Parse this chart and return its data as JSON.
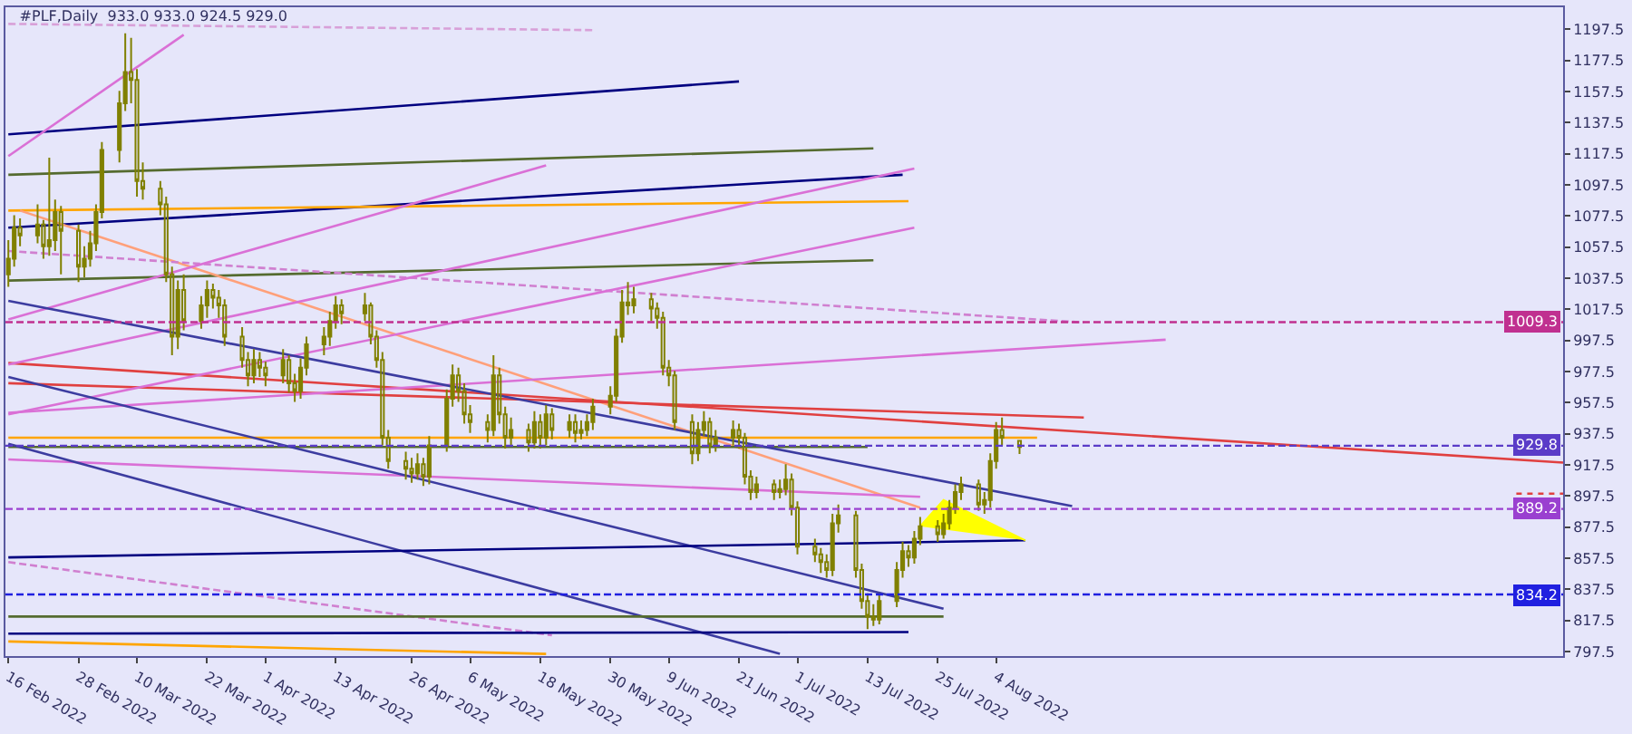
{
  "chart_data": {
    "type": "candlestick",
    "title": "#PLF,Daily  933.0 933.0 924.5 929.0",
    "xlim": [
      "2022-02-15T12:00",
      "2022-11-09"
    ],
    "xticks": [
      {
        "value": "2022-02-16",
        "label": "16 Feb 2022"
      },
      {
        "value": "2022-02-28",
        "label": "28 Feb 2022"
      },
      {
        "value": "2022-03-10",
        "label": "10 Mar 2022"
      },
      {
        "value": "2022-03-22",
        "label": "22 Mar 2022"
      },
      {
        "value": "2022-04-01",
        "label": "1 Apr 2022"
      },
      {
        "value": "2022-04-13",
        "label": "13 Apr 2022"
      },
      {
        "value": "2022-04-26",
        "label": "26 Apr 2022"
      },
      {
        "value": "2022-05-06",
        "label": "6 May 2022"
      },
      {
        "value": "2022-05-18",
        "label": "18 May 2022"
      },
      {
        "value": "2022-05-30",
        "label": "30 May 2022"
      },
      {
        "value": "2022-06-09",
        "label": "9 Jun 2022"
      },
      {
        "value": "2022-06-21",
        "label": "21 Jun 2022"
      },
      {
        "value": "2022-07-01",
        "label": "1 Jul 2022"
      },
      {
        "value": "2022-07-13",
        "label": "13 Jul 2022"
      },
      {
        "value": "2022-07-25",
        "label": "25 Jul 2022"
      },
      {
        "value": "2022-08-04",
        "label": "4 Aug 2022"
      }
    ],
    "ylim": [
      794.6,
      1211.7
    ],
    "yticks": [
      797.5,
      817.5,
      837.5,
      857.5,
      877.5,
      897.5,
      917.5,
      937.5,
      957.5,
      977.5,
      997.5,
      1017.5,
      1037.5,
      1057.5,
      1077.5,
      1097.5,
      1117.5,
      1137.5,
      1157.5,
      1177.5,
      1197.5
    ],
    "ref_lines": [
      {
        "axis": "y",
        "value": 1009.3,
        "label": "1009.3",
        "color": "#c03090",
        "line_style": "dashed"
      },
      {
        "axis": "y",
        "value": 929.8,
        "label": "929.8",
        "color": "#5a3cc8",
        "line_style": "dashed"
      },
      {
        "axis": "y",
        "value": 889.2,
        "label": "889.2",
        "color": "#9a40d0",
        "line_style": "dashed"
      },
      {
        "axis": "y",
        "value": 834.2,
        "label": "834.2",
        "color": "#2020e0",
        "line_style": "dashed"
      }
    ],
    "series": [
      {
        "type": "line",
        "x": [
          "2022-02-16",
          "2022-06-21"
        ],
        "values": [
          1130,
          1164
        ],
        "color": "#000080"
      },
      {
        "type": "line",
        "x": [
          "2022-02-16",
          "2022-07-14"
        ],
        "values": [
          1104,
          1121
        ],
        "color": "#556b2f"
      },
      {
        "type": "line",
        "x": [
          "2022-02-16",
          "2022-07-19"
        ],
        "values": [
          1070,
          1104
        ],
        "color": "#000080"
      },
      {
        "type": "line",
        "x": [
          "2022-02-16",
          "2022-07-20"
        ],
        "values": [
          1081,
          1087
        ],
        "color": "#ffa500"
      },
      {
        "type": "line",
        "x": [
          "2022-02-16",
          "2022-07-14"
        ],
        "values": [
          1036,
          1049
        ],
        "color": "#556b2f"
      },
      {
        "type": "line",
        "x": [
          "2022-02-18",
          "2022-07-22"
        ],
        "values": [
          1081,
          890
        ],
        "color": "#ffa07a"
      },
      {
        "type": "line",
        "x": [
          "2022-02-16",
          "2022-08-19"
        ],
        "values": [
          1055,
          1009
        ],
        "color": "#d080d0",
        "line_style": "dashed"
      },
      {
        "type": "line",
        "x": [
          "2022-02-16",
          "2022-11-09"
        ],
        "values": [
          983,
          919
        ],
        "color": "#e04040"
      },
      {
        "type": "line",
        "x": [
          "2022-02-16",
          "2022-08-19"
        ],
        "values": [
          970,
          948
        ],
        "color": "#e04040"
      },
      {
        "type": "line",
        "x": [
          "2022-02-16",
          "2022-08-11"
        ],
        "values": [
          935,
          935
        ],
        "color": "#ffa500"
      },
      {
        "type": "line",
        "x": [
          "2022-02-16",
          "2022-07-13"
        ],
        "values": [
          929,
          929
        ],
        "color": "#556b2f"
      },
      {
        "type": "line",
        "x": [
          "2022-02-16",
          "2022-03-18"
        ],
        "values": [
          1116,
          1194
        ],
        "color": "#da70d6"
      },
      {
        "type": "line",
        "x": [
          "2022-02-16",
          "2022-05-19"
        ],
        "values": [
          1011,
          1110
        ],
        "color": "#da70d6"
      },
      {
        "type": "line",
        "x": [
          "2022-02-16",
          "2022-07-21"
        ],
        "values": [
          982,
          1108
        ],
        "color": "#da70d6"
      },
      {
        "type": "line",
        "x": [
          "2022-02-16",
          "2022-07-21"
        ],
        "values": [
          950,
          1070
        ],
        "color": "#da70d6"
      },
      {
        "type": "line",
        "x": [
          "2022-02-16",
          "2022-09-02"
        ],
        "values": [
          951,
          998
        ],
        "color": "#da70d6"
      },
      {
        "type": "line",
        "x": [
          "2022-02-16",
          "2022-07-22"
        ],
        "values": [
          921,
          897
        ],
        "color": "#da70d6"
      },
      {
        "type": "line",
        "x": [
          "2022-02-16",
          "2022-08-17"
        ],
        "values": [
          1023,
          891
        ],
        "color": "#3c3ca0"
      },
      {
        "type": "line",
        "x": [
          "2022-02-16",
          "2022-06-28"
        ],
        "values": [
          931,
          796
        ],
        "color": "#3c3ca0"
      },
      {
        "type": "line",
        "x": [
          "2022-02-16",
          "2022-07-26"
        ],
        "values": [
          974,
          825
        ],
        "color": "#3c3ca0"
      },
      {
        "type": "line",
        "x": [
          "2022-02-16",
          "2022-05-20"
        ],
        "values": [
          855,
          808
        ],
        "color": "#d080d0",
        "line_style": "dashed"
      },
      {
        "type": "line",
        "x": [
          "2022-02-16",
          "2022-08-09"
        ],
        "values": [
          858,
          869
        ],
        "color": "#000080"
      },
      {
        "type": "line",
        "x": [
          "2022-02-16",
          "2022-07-26"
        ],
        "values": [
          820,
          820
        ],
        "color": "#556b2f"
      },
      {
        "type": "line",
        "x": [
          "2022-02-16",
          "2022-07-20"
        ],
        "values": [
          809,
          810
        ],
        "color": "#000080"
      },
      {
        "type": "line",
        "x": [
          "2022-02-16",
          "2022-05-19"
        ],
        "values": [
          804,
          796
        ],
        "color": "#ffa500"
      },
      {
        "type": "line",
        "x": [
          "2022-02-16",
          "2022-05-27"
        ],
        "values": [
          1201,
          1197
        ],
        "color": "#d8a0d8",
        "line_style": "dashed"
      },
      {
        "type": "line",
        "x": [
          "2022-11-01",
          "2022-11-09"
        ],
        "values": [
          899,
          899
        ],
        "color": "#e04040",
        "line_style": "dotted"
      },
      {
        "type": "area",
        "x": [
          "2022-07-22",
          "2022-07-26",
          "2022-08-09"
        ],
        "values": [
          878,
          895,
          869
        ],
        "color": "#ffff00"
      },
      {
        "color": "#808000",
        "x": [
          "2022-02-16",
          "2022-02-17",
          "2022-02-18",
          "2022-02-21",
          "2022-02-22",
          "2022-02-23",
          "2022-02-24",
          "2022-02-25",
          "2022-02-28",
          "2022-03-01",
          "2022-03-02",
          "2022-03-03",
          "2022-03-04",
          "2022-03-07",
          "2022-03-08",
          "2022-03-09",
          "2022-03-10",
          "2022-03-11",
          "2022-03-14",
          "2022-03-15",
          "2022-03-16",
          "2022-03-17",
          "2022-03-18",
          "2022-03-21",
          "2022-03-22",
          "2022-03-23",
          "2022-03-24",
          "2022-03-25",
          "2022-03-28",
          "2022-03-29",
          "2022-03-30",
          "2022-03-31",
          "2022-04-01",
          "2022-04-04",
          "2022-04-05",
          "2022-04-06",
          "2022-04-07",
          "2022-04-08",
          "2022-04-11",
          "2022-04-12",
          "2022-04-13",
          "2022-04-14",
          "2022-04-18",
          "2022-04-19",
          "2022-04-20",
          "2022-04-21",
          "2022-04-22",
          "2022-04-25",
          "2022-04-26",
          "2022-04-27",
          "2022-04-28",
          "2022-04-29",
          "2022-05-02",
          "2022-05-03",
          "2022-05-04",
          "2022-05-05",
          "2022-05-06",
          "2022-05-09",
          "2022-05-10",
          "2022-05-11",
          "2022-05-12",
          "2022-05-13",
          "2022-05-16",
          "2022-05-17",
          "2022-05-18",
          "2022-05-19",
          "2022-05-20",
          "2022-05-23",
          "2022-05-24",
          "2022-05-25",
          "2022-05-26",
          "2022-05-27",
          "2022-05-30",
          "2022-05-31",
          "2022-06-01",
          "2022-06-02",
          "2022-06-03",
          "2022-06-06",
          "2022-06-07",
          "2022-06-08",
          "2022-06-09",
          "2022-06-10",
          "2022-06-13",
          "2022-06-14",
          "2022-06-15",
          "2022-06-16",
          "2022-06-17",
          "2022-06-20",
          "2022-06-21",
          "2022-06-22",
          "2022-06-23",
          "2022-06-24",
          "2022-06-27",
          "2022-06-28",
          "2022-06-29",
          "2022-06-30",
          "2022-07-01",
          "2022-07-04",
          "2022-07-05",
          "2022-07-06",
          "2022-07-07",
          "2022-07-08",
          "2022-07-11",
          "2022-07-12",
          "2022-07-13",
          "2022-07-14",
          "2022-07-15",
          "2022-07-18",
          "2022-07-19",
          "2022-07-20",
          "2022-07-21",
          "2022-07-22",
          "2022-07-25",
          "2022-07-26",
          "2022-07-27",
          "2022-07-28",
          "2022-07-29",
          "2022-08-01",
          "2022-08-02",
          "2022-08-03",
          "2022-08-04",
          "2022-08-05",
          "2022-08-08"
        ],
        "ohlc": [
          [
            1040,
            1062,
            1032,
            1050
          ],
          [
            1050,
            1078,
            1045,
            1070
          ],
          [
            1070,
            1076,
            1058,
            1065
          ],
          [
            1065,
            1085,
            1060,
            1072
          ],
          [
            1072,
            1075,
            1050,
            1058
          ],
          [
            1058,
            1115,
            1052,
            1062
          ],
          [
            1062,
            1088,
            1055,
            1080
          ],
          [
            1080,
            1084,
            1040,
            1068
          ],
          [
            1068,
            1072,
            1035,
            1045
          ],
          [
            1045,
            1058,
            1038,
            1050
          ],
          [
            1050,
            1068,
            1045,
            1060
          ],
          [
            1060,
            1085,
            1055,
            1080
          ],
          [
            1080,
            1125,
            1076,
            1120
          ],
          [
            1120,
            1158,
            1112,
            1150
          ],
          [
            1150,
            1195,
            1145,
            1170
          ],
          [
            1170,
            1192,
            1150,
            1165
          ],
          [
            1165,
            1172,
            1090,
            1100
          ],
          [
            1100,
            1112,
            1088,
            1095
          ],
          [
            1095,
            1100,
            1078,
            1085
          ],
          [
            1085,
            1090,
            1035,
            1040
          ],
          [
            1040,
            1045,
            988,
            1000
          ],
          [
            1000,
            1036,
            992,
            1030
          ],
          [
            1030,
            1040,
            1004,
            1010
          ],
          [
            1010,
            1026,
            1005,
            1020
          ],
          [
            1020,
            1036,
            1012,
            1030
          ],
          [
            1030,
            1034,
            1018,
            1025
          ],
          [
            1025,
            1030,
            1012,
            1020
          ],
          [
            1020,
            1024,
            994,
            1000
          ],
          [
            1000,
            1006,
            980,
            985
          ],
          [
            985,
            990,
            968,
            975
          ],
          [
            975,
            992,
            970,
            985
          ],
          [
            985,
            990,
            974,
            980
          ],
          [
            980,
            984,
            968,
            975
          ],
          [
            975,
            992,
            970,
            985
          ],
          [
            985,
            988,
            964,
            970
          ],
          [
            970,
            976,
            958,
            965
          ],
          [
            965,
            986,
            960,
            980
          ],
          [
            980,
            1000,
            975,
            995
          ],
          [
            995,
            1006,
            988,
            1000
          ],
          [
            1000,
            1016,
            994,
            1010
          ],
          [
            1010,
            1026,
            1005,
            1020
          ],
          [
            1020,
            1024,
            1008,
            1015
          ],
          [
            1015,
            1028,
            1010,
            1020
          ],
          [
            1020,
            1022,
            995,
            1000
          ],
          [
            1000,
            1004,
            980,
            985
          ],
          [
            985,
            990,
            930,
            935
          ],
          [
            935,
            940,
            915,
            920
          ],
          [
            920,
            926,
            908,
            915
          ],
          [
            915,
            922,
            906,
            912
          ],
          [
            912,
            925,
            908,
            918
          ],
          [
            918,
            922,
            904,
            910
          ],
          [
            910,
            936,
            905,
            930
          ],
          [
            930,
            966,
            926,
            960
          ],
          [
            960,
            982,
            955,
            975
          ],
          [
            975,
            980,
            958,
            965
          ],
          [
            965,
            970,
            944,
            950
          ],
          [
            950,
            956,
            938,
            945
          ],
          [
            945,
            950,
            932,
            940
          ],
          [
            940,
            988,
            936,
            975
          ],
          [
            975,
            980,
            944,
            950
          ],
          [
            950,
            955,
            928,
            935
          ],
          [
            935,
            948,
            930,
            940
          ],
          [
            940,
            944,
            926,
            932
          ],
          [
            932,
            952,
            928,
            945
          ],
          [
            945,
            950,
            928,
            935
          ],
          [
            935,
            956,
            930,
            950
          ],
          [
            950,
            954,
            934,
            940
          ],
          [
            940,
            950,
            935,
            945
          ],
          [
            945,
            950,
            932,
            938
          ],
          [
            938,
            946,
            934,
            940
          ],
          [
            940,
            950,
            936,
            945
          ],
          [
            945,
            960,
            940,
            955
          ],
          [
            955,
            968,
            950,
            962
          ],
          [
            962,
            1005,
            958,
            1000
          ],
          [
            1000,
            1030,
            996,
            1022
          ],
          [
            1022,
            1035,
            1014,
            1020
          ],
          [
            1020,
            1032,
            1015,
            1024
          ],
          [
            1024,
            1028,
            1010,
            1018
          ],
          [
            1018,
            1022,
            1005,
            1012
          ],
          [
            1012,
            1016,
            975,
            980
          ],
          [
            980,
            985,
            968,
            975
          ],
          [
            975,
            978,
            940,
            945
          ],
          [
            945,
            950,
            918,
            925
          ],
          [
            925,
            945,
            920,
            940
          ],
          [
            940,
            952,
            936,
            945
          ],
          [
            945,
            948,
            925,
            930
          ],
          [
            930,
            940,
            926,
            935
          ],
          [
            935,
            946,
            930,
            940
          ],
          [
            940,
            944,
            928,
            935
          ],
          [
            935,
            938,
            905,
            910
          ],
          [
            910,
            914,
            895,
            900
          ],
          [
            900,
            910,
            896,
            905
          ],
          [
            905,
            908,
            895,
            900
          ],
          [
            900,
            908,
            896,
            902
          ],
          [
            902,
            918,
            898,
            908
          ],
          [
            908,
            912,
            885,
            890
          ],
          [
            890,
            894,
            860,
            865
          ],
          [
            865,
            870,
            855,
            860
          ],
          [
            860,
            864,
            848,
            855
          ],
          [
            855,
            860,
            845,
            850
          ],
          [
            850,
            886,
            846,
            880
          ],
          [
            880,
            892,
            874,
            885
          ],
          [
            885,
            888,
            845,
            850
          ],
          [
            850,
            854,
            825,
            830
          ],
          [
            830,
            835,
            812,
            820
          ],
          [
            820,
            828,
            814,
            818
          ],
          [
            818,
            835,
            815,
            830
          ],
          [
            830,
            855,
            826,
            850
          ],
          [
            850,
            868,
            845,
            862
          ],
          [
            862,
            866,
            852,
            858
          ],
          [
            858,
            875,
            854,
            870
          ],
          [
            870,
            884,
            866,
            878
          ],
          [
            878,
            882,
            868,
            873
          ],
          [
            873,
            886,
            870,
            880
          ],
          [
            880,
            895,
            876,
            890
          ],
          [
            890,
            905,
            886,
            900
          ],
          [
            900,
            910,
            895,
            905
          ],
          [
            905,
            908,
            888,
            892
          ],
          [
            892,
            900,
            886,
            895
          ],
          [
            895,
            925,
            890,
            920
          ],
          [
            920,
            945,
            915,
            940
          ],
          [
            940,
            948,
            930,
            935
          ],
          [
            933.0,
            933.0,
            924.5,
            929.0
          ]
        ]
      }
    ]
  }
}
